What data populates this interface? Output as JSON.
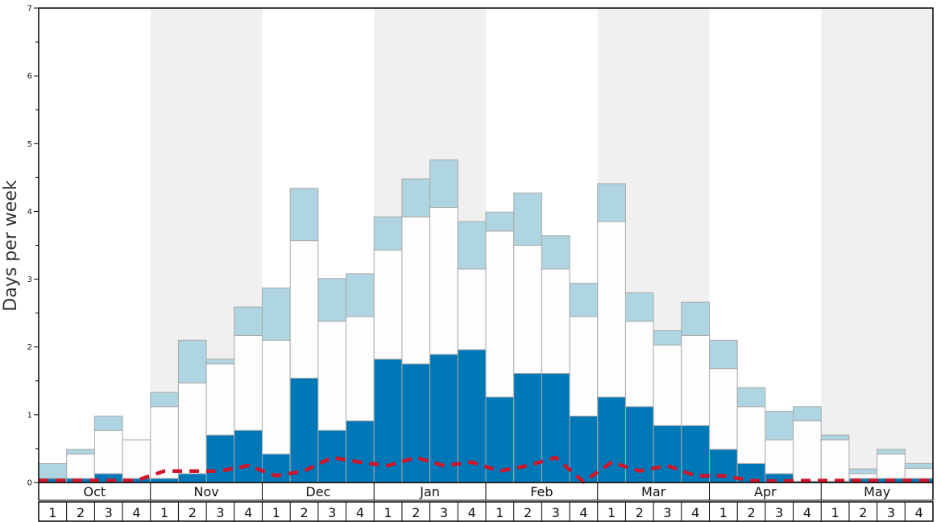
{
  "chart_data": {
    "type": "bar",
    "stacked": true,
    "ylabel": "Days per week",
    "ylim": [
      0,
      7
    ],
    "y_ticks": [
      0,
      1,
      2,
      3,
      4,
      5,
      6,
      7
    ],
    "grid": false,
    "months": [
      "Oct",
      "Nov",
      "Dec",
      "Jan",
      "Feb",
      "Mar",
      "Apr",
      "May"
    ],
    "week_labels": [
      "1",
      "2",
      "3",
      "4"
    ],
    "month_shading": [
      "#ffffff",
      "#f0f0f1",
      "#ffffff",
      "#f0f0f1",
      "#ffffff",
      "#f0f0f1",
      "#ffffff",
      "#f0f0f1"
    ],
    "colors": {
      "dark": "#0077b6",
      "white": "#fdfdfd",
      "light": "#aed5e1",
      "edge": "#aaaaaa",
      "dashed": "#d0152b"
    },
    "series": [
      {
        "values": [
          0.06,
          0.06,
          0.13,
          0.06,
          0.06,
          0.13,
          0.7,
          0.77,
          0.42,
          1.54,
          0.77,
          0.91,
          1.82,
          1.75,
          1.89,
          1.96,
          1.26,
          1.61,
          1.61,
          0.98,
          1.26,
          1.12,
          0.84,
          0.84,
          0.49,
          0.28,
          0.13,
          0.02,
          0.02,
          0.06,
          0.06,
          0.06
        ]
      },
      {
        "values": [
          0.0,
          0.36,
          0.64,
          0.57,
          1.06,
          1.34,
          1.05,
          1.4,
          1.68,
          2.03,
          1.61,
          1.54,
          1.61,
          2.17,
          2.17,
          1.19,
          2.45,
          1.89,
          1.54,
          1.47,
          2.59,
          1.26,
          1.19,
          1.33,
          1.19,
          0.84,
          0.5,
          0.89,
          0.61,
          0.07,
          0.36,
          0.15
        ]
      },
      {
        "values": [
          0.22,
          0.07,
          0.21,
          0.0,
          0.21,
          0.63,
          0.07,
          0.42,
          0.77,
          0.77,
          0.63,
          0.63,
          0.49,
          0.56,
          0.7,
          0.7,
          0.28,
          0.77,
          0.49,
          0.49,
          0.56,
          0.42,
          0.21,
          0.49,
          0.42,
          0.28,
          0.42,
          0.21,
          0.07,
          0.07,
          0.07,
          0.07
        ]
      },
      {
        "type": "line",
        "values": [
          0.03,
          0.03,
          0.03,
          0.03,
          0.17,
          0.17,
          0.17,
          0.25,
          0.1,
          0.17,
          0.37,
          0.3,
          0.25,
          0.37,
          0.25,
          0.3,
          0.17,
          0.25,
          0.37,
          0.01,
          0.3,
          0.17,
          0.25,
          0.1,
          0.1,
          0.03,
          0.02,
          0.03,
          0.03,
          0.03,
          0.03,
          0.03
        ]
      }
    ]
  }
}
